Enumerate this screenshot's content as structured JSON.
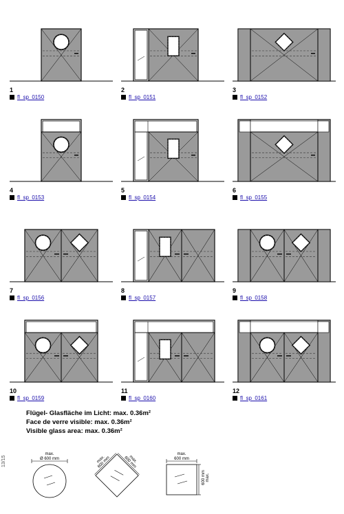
{
  "colors": {
    "fill": "#9a9a9a",
    "dark": "#7d7d7d",
    "line": "#000",
    "dash": "#444",
    "link": "#1a0dab"
  },
  "doors": [
    {
      "num": "1",
      "code": "fl_sp_0150",
      "side": "none",
      "top": false,
      "wings": 1,
      "win": "circle"
    },
    {
      "num": "2",
      "code": "fl_sp_0151",
      "side": "left",
      "top": false,
      "wings": 1,
      "win": "rect"
    },
    {
      "num": "3",
      "code": "fl_sp_0152",
      "side": "wall",
      "top": false,
      "wings": 1,
      "win": "diamond"
    },
    {
      "num": "4",
      "code": "fl_sp_0153",
      "side": "none",
      "top": true,
      "wings": 1,
      "win": "circle"
    },
    {
      "num": "5",
      "code": "fl_sp_0154",
      "side": "left",
      "top": true,
      "wings": 1,
      "win": "rect"
    },
    {
      "num": "6",
      "code": "fl_sp_0155",
      "side": "wall",
      "top": true,
      "wings": 1,
      "win": "diamond"
    },
    {
      "num": "7",
      "code": "fl_sp_0156",
      "side": "none",
      "top": false,
      "wings": 2,
      "win": "cd"
    },
    {
      "num": "8",
      "code": "fl_sp_0157",
      "side": "left",
      "top": false,
      "wings": 2,
      "win": "rect"
    },
    {
      "num": "9",
      "code": "fl_sp_0158",
      "side": "wall",
      "top": false,
      "wings": 2,
      "win": "cd"
    },
    {
      "num": "10",
      "code": "fl_sp_0159",
      "side": "none",
      "top": true,
      "wings": 2,
      "win": "cd"
    },
    {
      "num": "11",
      "code": "fl_sp_0160",
      "side": "left",
      "top": true,
      "wings": 2,
      "win": "rect"
    },
    {
      "num": "12",
      "code": "fl_sp_0161",
      "side": "wall",
      "top": true,
      "wings": 2,
      "win": "cd"
    }
  ],
  "note_de": "Flügel- Glasfläche im Licht: max. 0.36m²",
  "note_fr": "Face de verre visible: max. 0.36m²",
  "note_en": "Visible glass area: max. 0.36m²",
  "dim_circle": "Ø 600 mm",
  "dim_side": "600 mm",
  "dim_max": "max.",
  "page": "13/15"
}
